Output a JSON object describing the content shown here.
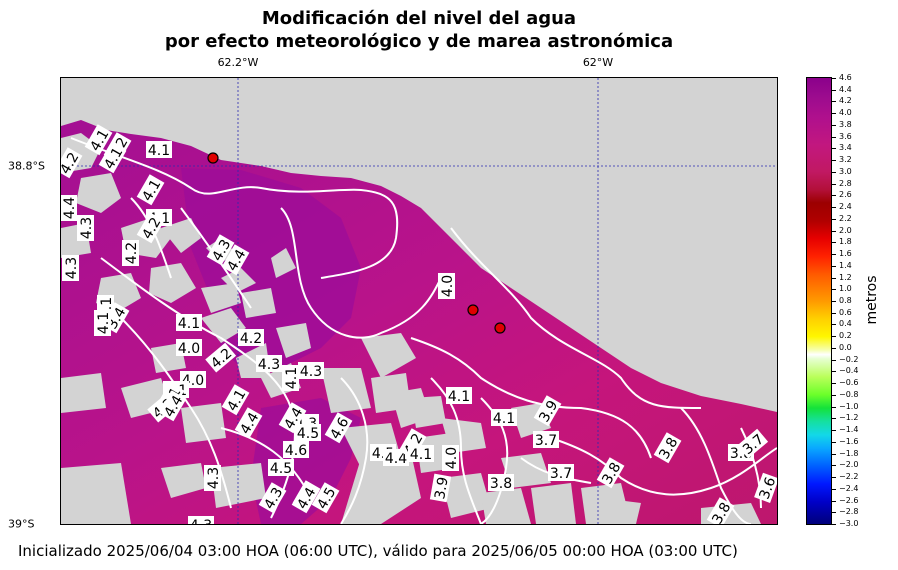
{
  "title_line1": "Modificación del nivel del agua",
  "title_line2": "por efecto meteorológico y de marea astronómica",
  "lon_labels": [
    "62.2°W",
    "62°W"
  ],
  "lat_labels": [
    "38.8°S",
    "39°S"
  ],
  "colorbar": {
    "label": "metros",
    "ticks": [
      "4.6",
      "4.4",
      "4.2",
      "4.0",
      "3.8",
      "3.6",
      "3.4",
      "3.2",
      "3.0",
      "2.8",
      "2.6",
      "2.4",
      "2.2",
      "2.0",
      "1.8",
      "1.6",
      "1.4",
      "1.2",
      "1.0",
      "0.8",
      "0.6",
      "0.4",
      "0.2",
      "0.0",
      "−0.2",
      "−0.4",
      "−0.6",
      "−0.8",
      "−1.0",
      "−1.2",
      "−1.4",
      "−1.6",
      "−1.8",
      "−2.0",
      "−2.2",
      "−2.4",
      "−2.6",
      "−2.8",
      "−3.0"
    ],
    "min": -3.0,
    "max": 4.6
  },
  "contour_labels": [
    "4.1",
    "4.2",
    "4.1",
    "4.1",
    "4.2",
    "4.1",
    "4.1",
    "4.4",
    "4.3",
    "4.2",
    "4.2",
    "4.3",
    "4.3",
    "4.4",
    "4.1",
    "3.4",
    "4.1",
    "4.1",
    "4.2",
    "4.0",
    "4.2",
    "4.1",
    "4.3",
    "4.3",
    "4.0",
    "4.1",
    "4.1",
    "4.2",
    "4.4",
    "4.1",
    "4.4",
    "4.3",
    "4.4",
    "4.5",
    "4.6",
    "4.6",
    "4.5",
    "4.4",
    "4.5",
    "4.4",
    "4.2",
    "4.1",
    "4.0",
    "4.1",
    "4.1",
    "3.9",
    "3.7",
    "3.7",
    "3.8",
    "3.8",
    "3.8",
    "3.8",
    "3.7",
    "3.8",
    "3.6",
    "4.3",
    "4.4",
    "4.3",
    "4.5",
    "4.3",
    "3.9",
    "4.0"
  ],
  "stations": [
    "station-1",
    "station-2",
    "station-3"
  ],
  "footer": "Inicializado 2025/06/04 03:00 HOA (06:00 UTC), válido para 2025/06/05 00:00 HOA (03:00 UTC)",
  "colors": {
    "land": "#d3d3d3",
    "water_high": "#a8108e",
    "water_mid": "#c0147f",
    "water_low": "#b8156e",
    "contour": "#ffffff",
    "station": "#e00000",
    "grid": "#2a2ab0"
  }
}
